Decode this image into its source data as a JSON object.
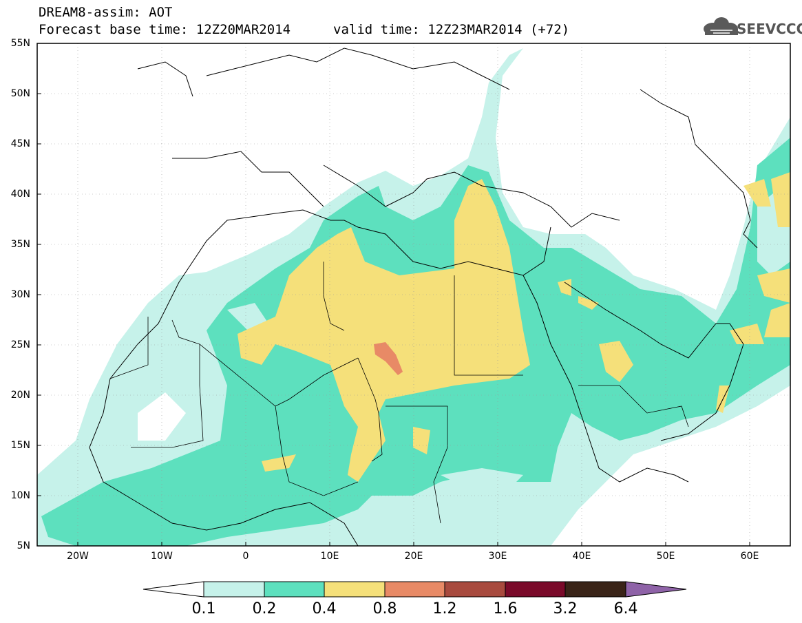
{
  "header": {
    "title": "DREAM8-assim: AOT",
    "base_time": "Forecast base time: 12Z20MAR2014",
    "valid_time": "valid time: 12Z23MAR2014 (+72)"
  },
  "logo": {
    "text": "SEEVCCC",
    "icon": "cloud-icon"
  },
  "map": {
    "lon_range": [
      -25,
      65
    ],
    "lat_range": [
      5,
      55
    ],
    "lat_labels": [
      "55N",
      "50N",
      "45N",
      "40N",
      "35N",
      "30N",
      "25N",
      "20N",
      "15N",
      "10N",
      "5N"
    ],
    "lon_labels": [
      "20W",
      "10W",
      "0",
      "10E",
      "20E",
      "30E",
      "40E",
      "50E",
      "60E"
    ]
  },
  "colorbar": {
    "labels": [
      "0.1",
      "0.2",
      "0.4",
      "0.8",
      "1.2",
      "1.6",
      "3.2",
      "6.4"
    ],
    "colors": [
      "#ffffff",
      "#c6f2ea",
      "#5de0be",
      "#f5e07a",
      "#e88a66",
      "#a84a3e",
      "#7a0a2a",
      "#3a2418",
      "#8f63a8"
    ]
  }
}
